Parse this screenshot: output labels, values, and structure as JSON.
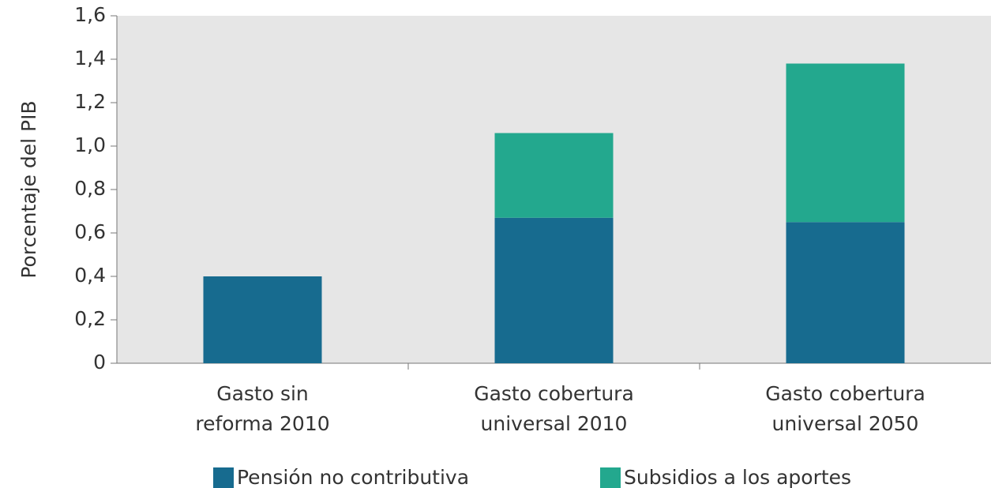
{
  "chart_data": {
    "type": "stacked_bar",
    "y_label": "Porcentaje del PIB",
    "categories": [
      "Gasto sin reforma 2010",
      "Gasto cobertura universal 2010",
      "Gasto cobertura universal 2050"
    ],
    "series": [
      {
        "name": "Pensión no contributiva",
        "color": "#176b8f",
        "values": [
          0.4,
          0.67,
          0.65
        ]
      },
      {
        "name": "Subsidios a los aportes",
        "color": "#23a88e",
        "values": [
          0,
          0.39,
          0.73
        ]
      }
    ],
    "ylim": [
      0,
      1.6
    ],
    "yticks": [
      0,
      {
        "value": 0.2,
        "label": "0,2"
      },
      {
        "value": 0.4,
        "label": "0,4"
      },
      {
        "value": 0.6,
        "label": "0,6"
      },
      {
        "value": 0.8,
        "label": "0,8"
      },
      {
        "value": 1.0,
        "label": "1,0"
      },
      {
        "value": 1.2,
        "label": "1,2"
      },
      {
        "value": 1.4,
        "label": "1,4"
      },
      {
        "value": 1.6,
        "label": "1,6"
      }
    ],
    "legend": "bottom"
  }
}
